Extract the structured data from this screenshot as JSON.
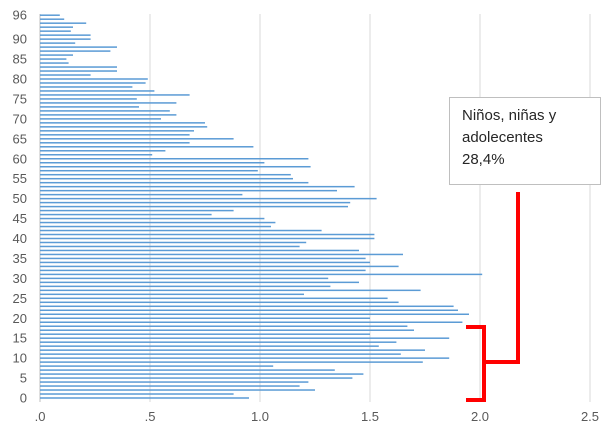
{
  "chart_data": {
    "type": "bar",
    "orientation": "horizontal",
    "title": "",
    "xlabel": "",
    "ylabel": "",
    "xlim": [
      0,
      2.6
    ],
    "ylim": [
      0,
      96
    ],
    "x_ticks": [
      ".0",
      ".5",
      "1.0",
      "1.5",
      "2.0",
      "2.5"
    ],
    "x_tick_values": [
      0,
      0.5,
      1.0,
      1.5,
      2.0,
      2.5
    ],
    "y_ticks": [
      "0",
      "5",
      "10",
      "15",
      "20",
      "25",
      "30",
      "35",
      "40",
      "45",
      "50",
      "55",
      "60",
      "65",
      "70",
      "75",
      "80",
      "85",
      "90",
      "96"
    ],
    "y_tick_values": [
      0,
      5,
      10,
      15,
      20,
      25,
      30,
      35,
      40,
      45,
      50,
      55,
      60,
      65,
      70,
      75,
      80,
      85,
      90,
      96
    ],
    "grid": "vertical",
    "bar_color": "#5b9bd5",
    "series": [
      {
        "ages": [
          0,
          1,
          2,
          3,
          4,
          5,
          6,
          7,
          8,
          9,
          10,
          11,
          12,
          13,
          14,
          15,
          16,
          17,
          18,
          19,
          20,
          21,
          22,
          23,
          24,
          25,
          26,
          27,
          28,
          29,
          30,
          31,
          32,
          33,
          34,
          35,
          36,
          37,
          38,
          39,
          40,
          41,
          42,
          43,
          44,
          45,
          46,
          47,
          48,
          49,
          50,
          51,
          52,
          53,
          54,
          55,
          56,
          57,
          58,
          59,
          60,
          61,
          62,
          63,
          64,
          65,
          66,
          67,
          68,
          69,
          70,
          71,
          72,
          73,
          74,
          75,
          76,
          77,
          78,
          79,
          80,
          81,
          82,
          83,
          84,
          85,
          86,
          87,
          88,
          89,
          90,
          91,
          92,
          93,
          94,
          95,
          96
        ],
        "values": [
          0.95,
          0.88,
          1.25,
          1.18,
          1.22,
          1.42,
          1.47,
          1.34,
          1.06,
          1.74,
          1.86,
          1.64,
          1.75,
          1.54,
          1.62,
          1.86,
          1.5,
          1.7,
          1.67,
          1.92,
          1.5,
          1.95,
          1.9,
          1.88,
          1.63,
          1.58,
          1.2,
          1.73,
          1.32,
          1.45,
          1.31,
          2.01,
          1.48,
          1.63,
          1.5,
          1.48,
          1.65,
          1.45,
          1.18,
          1.21,
          1.52,
          1.52,
          1.28,
          1.05,
          1.07,
          1.02,
          0.78,
          0.88,
          1.4,
          1.41,
          1.53,
          0.92,
          1.35,
          1.43,
          1.22,
          1.15,
          1.14,
          0.99,
          1.23,
          1.02,
          1.22,
          0.51,
          0.57,
          0.97,
          0.68,
          0.88,
          0.68,
          0.7,
          0.76,
          0.75,
          0.55,
          0.62,
          0.59,
          0.45,
          0.62,
          0.44,
          0.68,
          0.52,
          0.42,
          0.48,
          0.49,
          0.23,
          0.35,
          0.35,
          0.13,
          0.12,
          0.15,
          0.32,
          0.35,
          0.16,
          0.23,
          0.23,
          0.14,
          0.15,
          0.21,
          0.11,
          0.09
        ]
      }
    ],
    "annotation": {
      "lines": [
        "Niños, niñas y",
        "adolecentes",
        "28,4%"
      ],
      "bracket_color": "#ff0000"
    }
  }
}
